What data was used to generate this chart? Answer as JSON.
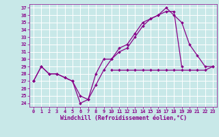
{
  "xlabel": "Windchill (Refroidissement éolien,°C)",
  "x": [
    0,
    1,
    2,
    3,
    4,
    5,
    6,
    7,
    8,
    9,
    10,
    11,
    12,
    13,
    14,
    15,
    16,
    17,
    18,
    19,
    20,
    21,
    22,
    23
  ],
  "line1": [
    27,
    29,
    28,
    28,
    27.5,
    27,
    24,
    24.5,
    26.5,
    28.5,
    30,
    31,
    31.5,
    33,
    34.5,
    35.5,
    36,
    37,
    36,
    35,
    32,
    30.5,
    29,
    29
  ],
  "line2": [
    27,
    29,
    28,
    28,
    27.5,
    27,
    25,
    24.5,
    28,
    30,
    30,
    31.5,
    32,
    33.5,
    35,
    35.5,
    36,
    36.5,
    36.5,
    29,
    null,
    null,
    null,
    null
  ],
  "line3": [
    27,
    null,
    null,
    28,
    null,
    null,
    null,
    null,
    null,
    null,
    28.5,
    28.5,
    28.5,
    28.5,
    28.5,
    28.5,
    28.5,
    28.5,
    28.5,
    28.5,
    28.5,
    28.5,
    28.5,
    29
  ],
  "line_color": "#880088",
  "marker": "D",
  "markersize": 2.0,
  "bg_color": "#c8e8e8",
  "grid_color": "#aacccc",
  "xlim": [
    -0.5,
    23.5
  ],
  "ylim": [
    23.5,
    37.5
  ],
  "yticks": [
    24,
    25,
    26,
    27,
    28,
    29,
    30,
    31,
    32,
    33,
    34,
    35,
    36,
    37
  ],
  "xticks": [
    0,
    1,
    2,
    3,
    4,
    5,
    6,
    7,
    8,
    9,
    10,
    11,
    12,
    13,
    14,
    15,
    16,
    17,
    18,
    19,
    20,
    21,
    22,
    23
  ],
  "tick_fontsize": 5.0,
  "xlabel_fontsize": 6.0,
  "linewidth": 0.9
}
